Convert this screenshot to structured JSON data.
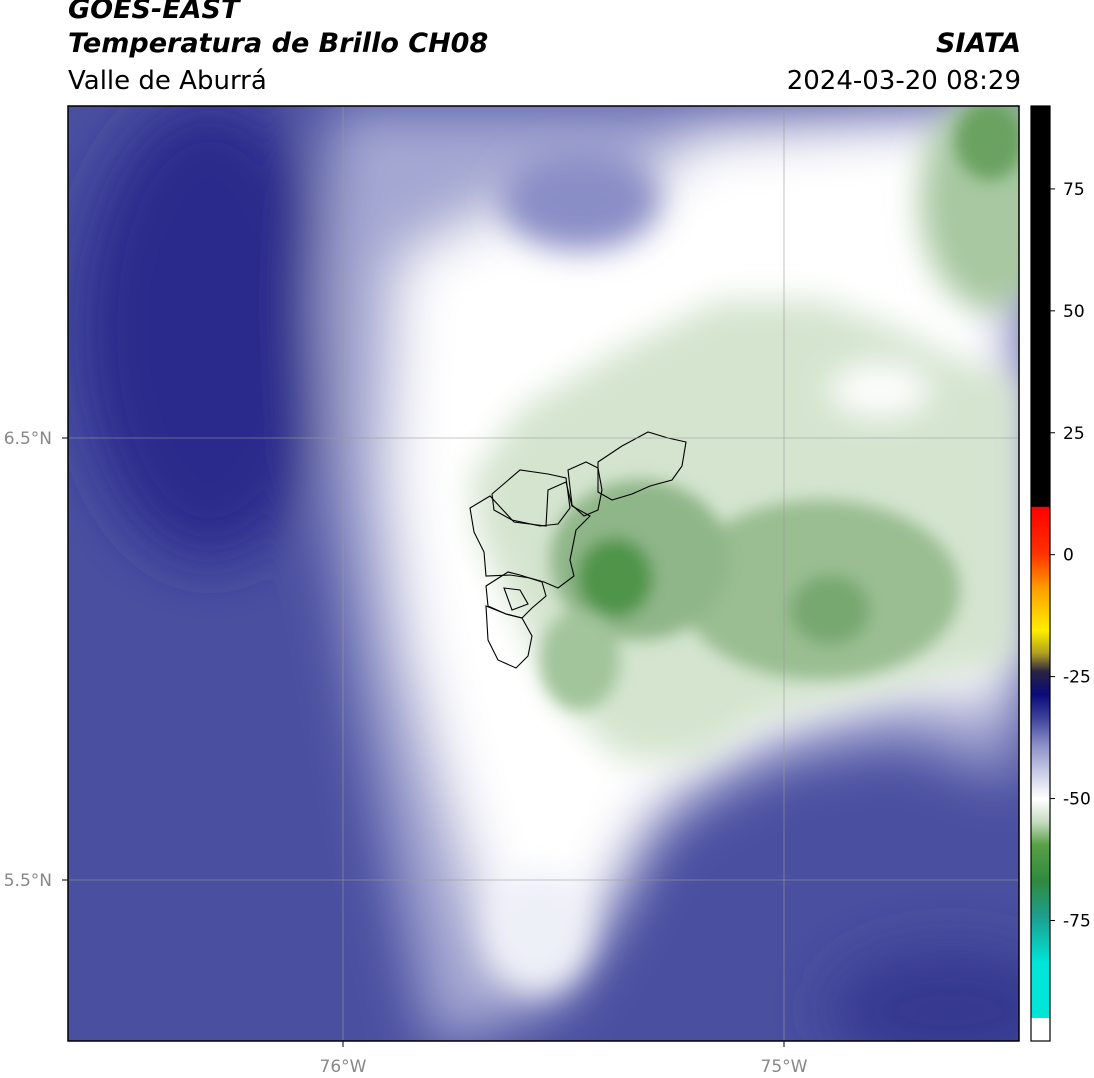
{
  "header": {
    "satellite": "GOES-EAST",
    "product": "Temperatura de Brillo CH08",
    "region": "Valle de Aburrá",
    "organization": "SIATA",
    "datetime": "2024-03-20 08:29"
  },
  "map": {
    "lat_labels": [
      "6.5°N",
      "5.5°N"
    ],
    "lon_labels": [
      "76°W",
      "75°W"
    ],
    "colors": {
      "deep_blue": "#2a2c8c",
      "mid_blue": "#4a4fa0",
      "light_blue": "#9ea2cf",
      "white": "#ffffff",
      "light_green": "#d7e6d2",
      "mid_green": "#8fb688",
      "dark_green": "#3f8a3a"
    }
  },
  "colorbar": {
    "ticks": [
      "75",
      "50",
      "25",
      "0",
      "-25",
      "-50",
      "-75"
    ],
    "tick_values": [
      75,
      50,
      25,
      0,
      -25,
      -50,
      -75
    ],
    "range": [
      -95,
      92
    ]
  }
}
